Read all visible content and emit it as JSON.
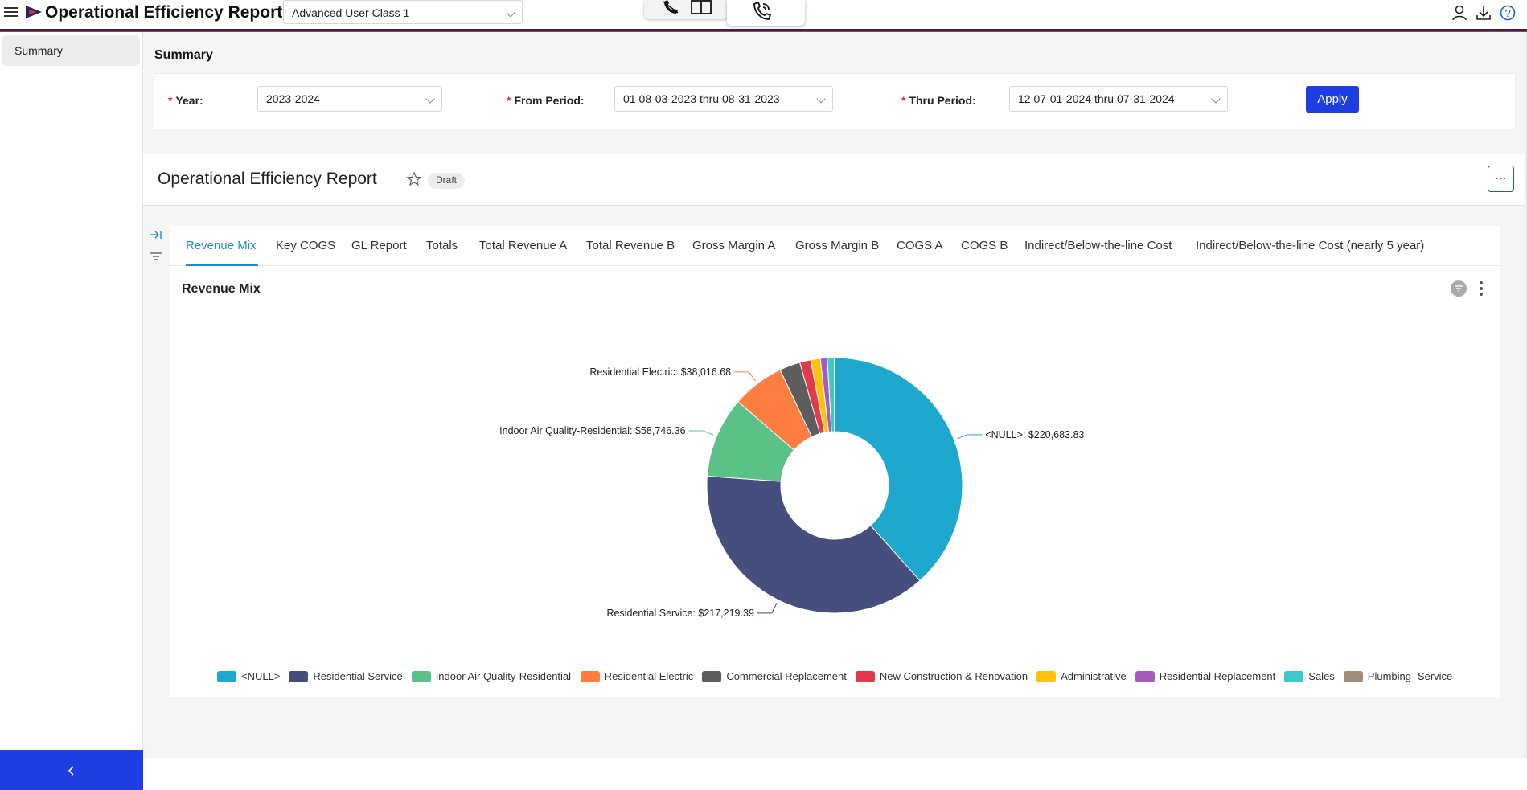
{
  "app": {
    "title": "Operational Efficiency Report",
    "user_class": "Advanced User Class 1"
  },
  "sidebar": {
    "items": [
      {
        "label": "Summary"
      }
    ],
    "collapse_glyph": "<"
  },
  "summary": {
    "section_title": "Summary",
    "filters": {
      "year": {
        "label": "Year",
        "value": "2023-2024"
      },
      "from_period": {
        "label": "From Period",
        "value": "01 08-03-2023 thru 08-31-2023"
      },
      "thru_period": {
        "label": "Thru Period",
        "value": "12 07-01-2024 thru 07-31-2024"
      },
      "apply_label": "Apply"
    }
  },
  "report": {
    "title": "Operational Efficiency Report",
    "status": "Draft",
    "more_label": "···"
  },
  "tabs": [
    {
      "label": "Revenue Mix",
      "active": true
    },
    {
      "label": "Key COGS"
    },
    {
      "label": "GL Report"
    },
    {
      "label": "Totals"
    },
    {
      "label": "Total Revenue A"
    },
    {
      "label": "Total Revenue B"
    },
    {
      "label": "Gross Margin A"
    },
    {
      "label": "Gross Margin B"
    },
    {
      "label": "COGS A"
    },
    {
      "label": "COGS B"
    },
    {
      "label": "Indirect/Below-the-line Cost"
    },
    {
      "label": "Indirect/Below-the-line Cost (nearly 5 year)"
    }
  ],
  "chart_data": {
    "type": "pie",
    "title": "Revenue Mix",
    "donut": true,
    "series": [
      {
        "name": "<NULL>",
        "value": 220683.83,
        "label": "<NULL>: $220,683.83",
        "color": "#1fa8cd"
      },
      {
        "name": "Residential Service",
        "value": 217219.39,
        "label": "Residential Service: $217,219.39",
        "color": "#454e7c"
      },
      {
        "name": "Indoor Air Quality-Residential",
        "value": 58746.36,
        "label": "Indoor Air Quality-Residential: $58,746.36",
        "color": "#5cc186"
      },
      {
        "name": "Residential Electric",
        "value": 38016.68,
        "label": "Residential Electric: $38,016.68",
        "color": "#fd7e40"
      },
      {
        "name": "Commercial Replacement",
        "value": 15000,
        "color": "#5d5d5d"
      },
      {
        "name": "New Construction & Renovation",
        "value": 8000,
        "color": "#e03a4b"
      },
      {
        "name": "Administrative",
        "value": 7000,
        "color": "#fdc20c"
      },
      {
        "name": "Residential Replacement",
        "value": 5000,
        "color": "#a55dbd"
      },
      {
        "name": "Sales",
        "value": 5000,
        "color": "#3ec8cc"
      },
      {
        "name": "Plumbing- Service",
        "value": 300,
        "color": "#a08c78"
      }
    ],
    "legend_position": "bottom"
  }
}
